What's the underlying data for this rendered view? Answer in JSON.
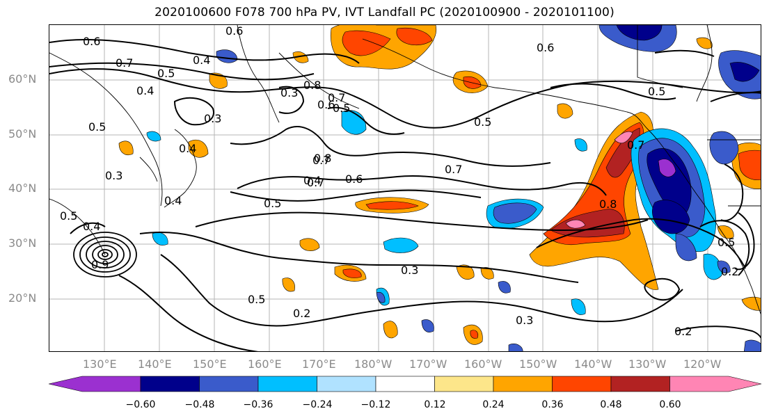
{
  "title": "2020100600 F078 700 hPa PV, IVT Landfall PC (2020100900 - 2020101100)",
  "map": {
    "lat_labels": [
      "60°N",
      "50°N",
      "40°N",
      "30°N",
      "20°N"
    ],
    "lon_labels": [
      "130°E",
      "140°E",
      "150°E",
      "160°E",
      "170°E",
      "180°W",
      "170°W",
      "160°W",
      "150°W",
      "140°W",
      "130°W",
      "120°W"
    ],
    "contour_labels": [
      "0.6",
      "0.6",
      "0.7",
      "0.4",
      "0.5",
      "0.4",
      "0.3",
      "0.5",
      "0.4",
      "0.3",
      "0.4",
      "0.5",
      "0.4",
      "0.3",
      "0.8",
      "0.7",
      "0.6",
      "0.5",
      "0.7",
      "0.4",
      "0.8",
      "0.7",
      "0.5",
      "0.7",
      "0.6",
      "0.5",
      "0.6",
      "0.7",
      "0.8",
      "0.5",
      "0.3",
      "0.5",
      "0.2",
      "0.3",
      "0.2",
      "0.2",
      "0.5",
      "0.9"
    ]
  },
  "colorbar": {
    "colors": [
      "#9b30d0",
      "#00008b",
      "#3a5bcb",
      "#00bfff",
      "#b0e2ff",
      "#ffffff",
      "#fde68a",
      "#ffa500",
      "#ff4500",
      "#b22222",
      "#ff85b4"
    ],
    "ticks": [
      "−0.60",
      "−0.48",
      "−0.36",
      "−0.24",
      "−0.12",
      "0.12",
      "0.24",
      "0.36",
      "0.48",
      "0.60"
    ]
  }
}
